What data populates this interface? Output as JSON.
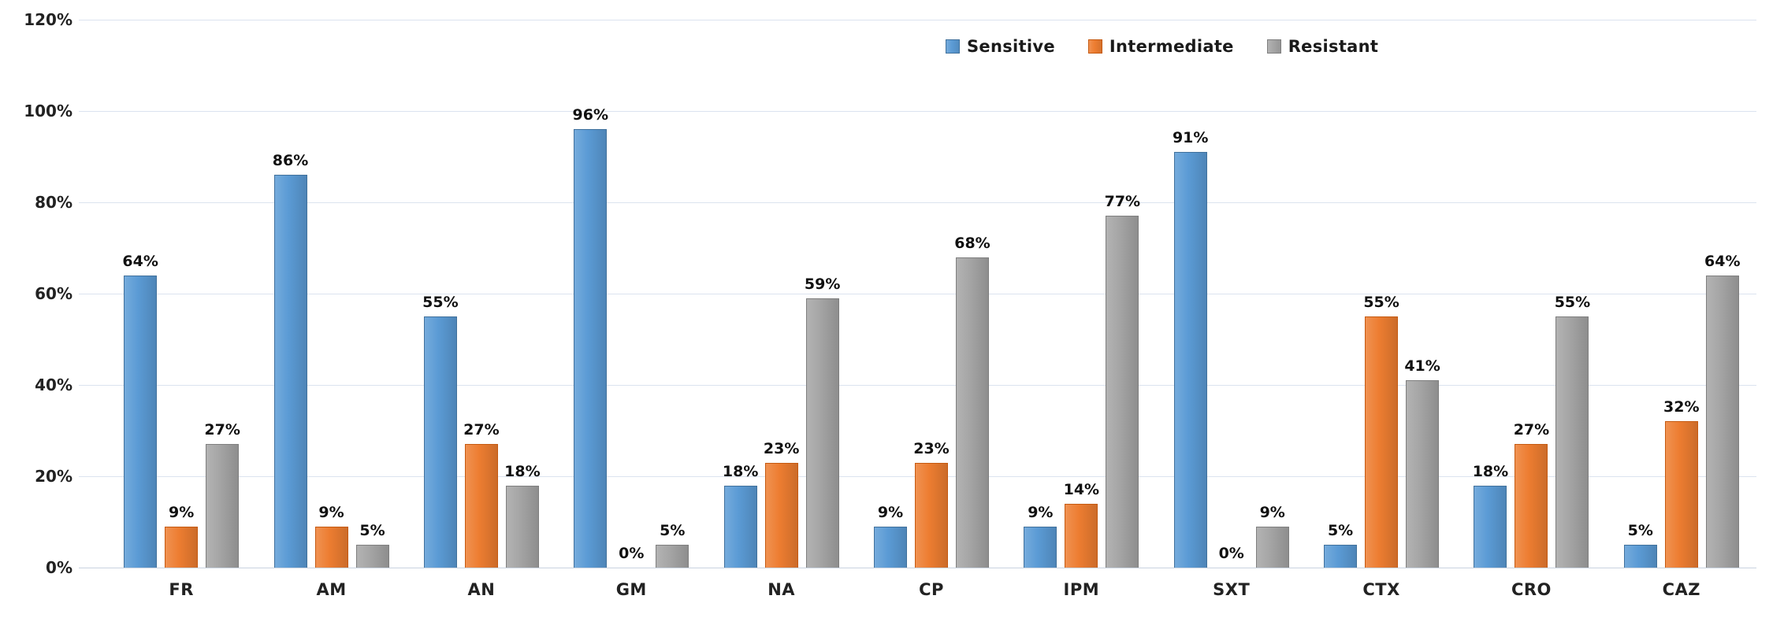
{
  "chart_data": {
    "type": "bar",
    "title": "",
    "categories": [
      "FR",
      "AM",
      "AN",
      "GM",
      "NA",
      "CP",
      "IPM",
      "SXT",
      "CTX",
      "CRO",
      "CAZ"
    ],
    "series": [
      {
        "name": "Sensitive",
        "color": "#5b9bd5",
        "border": "#41719c",
        "values": [
          64,
          86,
          55,
          96,
          18,
          9,
          9,
          91,
          5,
          18,
          5
        ]
      },
      {
        "name": "Intermediate",
        "color": "#ed7d31",
        "border": "#c55a11",
        "values": [
          9,
          9,
          27,
          0,
          23,
          23,
          14,
          0,
          55,
          27,
          32
        ]
      },
      {
        "name": "Resistant",
        "color": "#a5a5a5",
        "border": "#7f7f7f",
        "values": [
          27,
          5,
          18,
          5,
          59,
          68,
          77,
          9,
          41,
          55,
          64
        ]
      }
    ],
    "value_label_suffix": "%",
    "y_axis": {
      "ticks": [
        "0%",
        "20%",
        "40%",
        "60%",
        "80%",
        "100%",
        "120%"
      ],
      "min": 0,
      "max": 120,
      "step": 20
    },
    "xlabel": "",
    "ylabel": "",
    "grid": true,
    "legend_position": "top-right",
    "colors": {
      "background": "#ffffff",
      "gridline": "#dbe3ef",
      "axis_line": "#c9d3e0",
      "text": "#1a1a1a"
    }
  }
}
